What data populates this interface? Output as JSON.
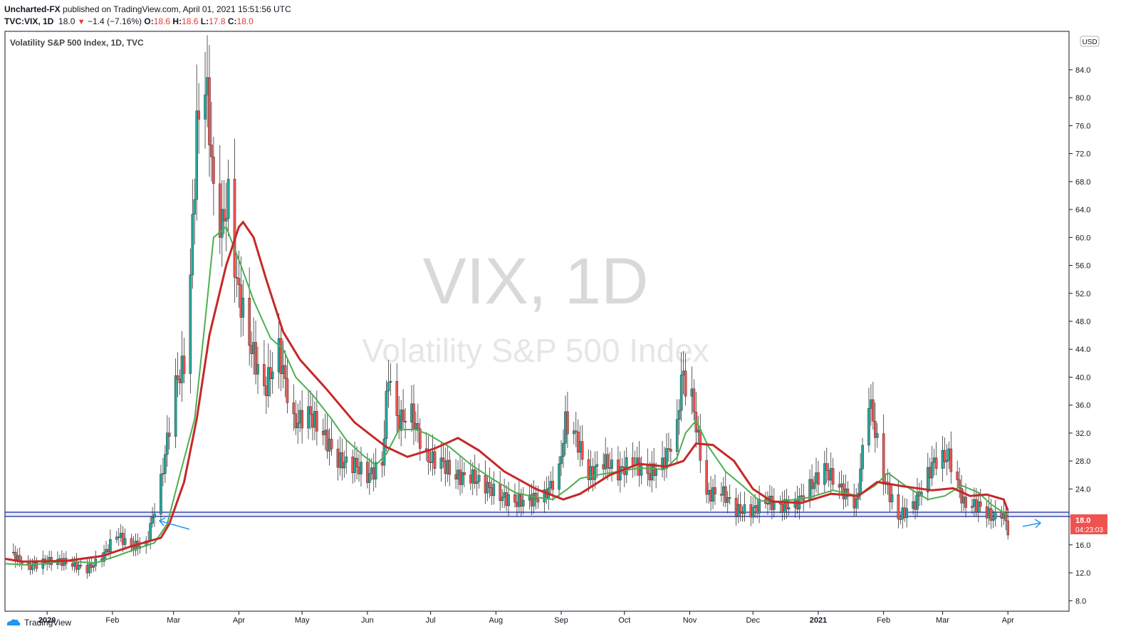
{
  "header": {
    "publisher": "Uncharted-FX",
    "published_text": "published on TradingView.com, April 01, 2021 15:51:56 UTC",
    "symbol": "TVC:VIX, 1D",
    "last": "18.0",
    "change": "−1.4 (−7.16%)",
    "o_label": "O:",
    "o_val": "18.6",
    "h_label": "H:",
    "h_val": "18.6",
    "l_label": "L:",
    "l_val": "17.8",
    "c_label": "C:",
    "c_val": "18.0"
  },
  "legend_title": "Volatility S&P 500 Index, 1D, TVC",
  "watermark": {
    "line1": "VIX, 1D",
    "line2": "Volatility S&P 500 Index"
  },
  "axis": {
    "currency": "USD",
    "price_badge": "18.0",
    "countdown": "04:23:03"
  },
  "footer": {
    "brand": "TradingView"
  },
  "colors": {
    "up": "#26a69a",
    "down": "#ef5350",
    "ma_fast": "#4caf50",
    "ma_slow": "#c62828",
    "support": "#3949ab",
    "arrow": "#2196f3",
    "badge": "#ef5350",
    "text": "#131722"
  },
  "chart_data": {
    "type": "candlestick",
    "title": "Volatility S&P 500 Index, 1D, TVC",
    "x_ticks": [
      "2020",
      "Feb",
      "Mar",
      "Apr",
      "May",
      "Jun",
      "Jul",
      "Aug",
      "Sep",
      "Oct",
      "Nov",
      "Dec",
      "2021",
      "Feb",
      "Mar",
      "Apr"
    ],
    "y_ticks": [
      8.0,
      12.0,
      16.0,
      20.0,
      24.0,
      28.0,
      32.0,
      36.0,
      40.0,
      44.0,
      48.0,
      52.0,
      56.0,
      60.0,
      64.0,
      68.0,
      72.0,
      76.0,
      80.0,
      84.0
    ],
    "ylim": [
      6.5,
      89.5
    ],
    "x_range": [
      "2019-12-12",
      "2021-04-30"
    ],
    "support_level": [
      19.2,
      19.8
    ],
    "grid": false,
    "series": [
      {
        "name": "VIX",
        "type": "candles",
        "note": "approximate daily closes",
        "points": [
          [
            "2019-12-16",
            14.5
          ],
          [
            "2019-12-23",
            12.8
          ],
          [
            "2019-12-30",
            13.5
          ],
          [
            "2020-01-06",
            13.8
          ],
          [
            "2020-01-13",
            13.2
          ],
          [
            "2020-01-20",
            12.5
          ],
          [
            "2020-01-27",
            14.2
          ],
          [
            "2020-02-03",
            17.5
          ],
          [
            "2020-02-10",
            15.8
          ],
          [
            "2020-02-17",
            16.0
          ],
          [
            "2020-02-24",
            25.0
          ],
          [
            "2020-03-02",
            39.0
          ],
          [
            "2020-03-06",
            41.9
          ],
          [
            "2020-03-09",
            54.5
          ],
          [
            "2020-03-12",
            75.5
          ],
          [
            "2020-03-16",
            82.7
          ],
          [
            "2020-03-18",
            76.0
          ],
          [
            "2020-03-20",
            66.0
          ],
          [
            "2020-03-24",
            61.7
          ],
          [
            "2020-03-27",
            65.5
          ],
          [
            "2020-03-31",
            53.5
          ],
          [
            "2020-04-06",
            45.2
          ],
          [
            "2020-04-13",
            38.1
          ],
          [
            "2020-04-20",
            43.8
          ],
          [
            "2020-04-27",
            33.3
          ],
          [
            "2020-05-04",
            34.9
          ],
          [
            "2020-05-11",
            31.9
          ],
          [
            "2020-05-18",
            28.0
          ],
          [
            "2020-05-26",
            27.5
          ],
          [
            "2020-06-01",
            25.8
          ],
          [
            "2020-06-08",
            27.6
          ],
          [
            "2020-06-11",
            40.8
          ],
          [
            "2020-06-15",
            33.7
          ],
          [
            "2020-06-22",
            34.7
          ],
          [
            "2020-06-29",
            28.4
          ],
          [
            "2020-07-06",
            27.9
          ],
          [
            "2020-07-13",
            25.7
          ],
          [
            "2020-07-20",
            25.8
          ],
          [
            "2020-07-27",
            24.5
          ],
          [
            "2020-08-03",
            23.0
          ],
          [
            "2020-08-10",
            22.1
          ],
          [
            "2020-08-17",
            22.5
          ],
          [
            "2020-08-24",
            22.9
          ],
          [
            "2020-08-31",
            26.6
          ],
          [
            "2020-09-03",
            33.6
          ],
          [
            "2020-09-08",
            31.5
          ],
          [
            "2020-09-14",
            25.8
          ],
          [
            "2020-09-21",
            28.0
          ],
          [
            "2020-09-28",
            26.4
          ],
          [
            "2020-10-05",
            28.0
          ],
          [
            "2020-10-12",
            26.0
          ],
          [
            "2020-10-19",
            27.5
          ],
          [
            "2020-10-26",
            32.5
          ],
          [
            "2020-10-28",
            40.3
          ],
          [
            "2020-11-02",
            37.1
          ],
          [
            "2020-11-09",
            23.1
          ],
          [
            "2020-11-16",
            23.7
          ],
          [
            "2020-11-23",
            21.0
          ],
          [
            "2020-11-30",
            20.8
          ],
          [
            "2020-12-07",
            22.3
          ],
          [
            "2020-12-14",
            21.5
          ],
          [
            "2020-12-21",
            21.7
          ],
          [
            "2021-01-04",
            26.9
          ],
          [
            "2021-01-11",
            24.3
          ],
          [
            "2021-01-19",
            21.6
          ],
          [
            "2021-01-25",
            37.2
          ],
          [
            "2021-02-01",
            25.6
          ],
          [
            "2021-02-08",
            19.9
          ],
          [
            "2021-02-16",
            22.0
          ],
          [
            "2021-02-25",
            28.0
          ],
          [
            "2021-03-04",
            28.6
          ],
          [
            "2021-03-11",
            21.9
          ],
          [
            "2021-03-18",
            21.6
          ],
          [
            "2021-03-25",
            19.8
          ],
          [
            "2021-03-29",
            20.7
          ],
          [
            "2021-03-31",
            19.4
          ],
          [
            "2021-04-01",
            18.0
          ]
        ]
      },
      {
        "name": "fast MA",
        "type": "line",
        "points": [
          [
            "2019-12-12",
            13.3
          ],
          [
            "2019-12-24",
            13.1
          ],
          [
            "2020-01-10",
            13.7
          ],
          [
            "2020-01-24",
            13.4
          ],
          [
            "2020-02-03",
            14.4
          ],
          [
            "2020-02-14",
            15.6
          ],
          [
            "2020-02-21",
            16.3
          ],
          [
            "2020-02-27",
            19.0
          ],
          [
            "2020-03-04",
            26.0
          ],
          [
            "2020-03-11",
            34.0
          ],
          [
            "2020-03-16",
            48.0
          ],
          [
            "2020-03-20",
            60.0
          ],
          [
            "2020-03-26",
            61.5
          ],
          [
            "2020-04-02",
            56.0
          ],
          [
            "2020-04-08",
            51.0
          ],
          [
            "2020-04-16",
            45.6
          ],
          [
            "2020-04-22",
            44.0
          ],
          [
            "2020-04-28",
            40.0
          ],
          [
            "2020-05-06",
            37.5
          ],
          [
            "2020-05-15",
            34.0
          ],
          [
            "2020-05-22",
            31.0
          ],
          [
            "2020-05-30",
            28.8
          ],
          [
            "2020-06-05",
            27.4
          ],
          [
            "2020-06-10",
            29.0
          ],
          [
            "2020-06-16",
            32.5
          ],
          [
            "2020-06-24",
            32.5
          ],
          [
            "2020-06-30",
            31.8
          ],
          [
            "2020-07-10",
            30.0
          ],
          [
            "2020-07-20",
            27.5
          ],
          [
            "2020-07-30",
            25.5
          ],
          [
            "2020-08-10",
            23.5
          ],
          [
            "2020-08-20",
            22.8
          ],
          [
            "2020-08-28",
            22.5
          ],
          [
            "2020-09-04",
            24.0
          ],
          [
            "2020-09-10",
            25.5
          ],
          [
            "2020-09-18",
            26.0
          ],
          [
            "2020-09-28",
            26.5
          ],
          [
            "2020-10-08",
            27.0
          ],
          [
            "2020-10-20",
            26.8
          ],
          [
            "2020-10-26",
            28.5
          ],
          [
            "2020-10-30",
            32.0
          ],
          [
            "2020-11-04",
            33.8
          ],
          [
            "2020-11-10",
            30.0
          ],
          [
            "2020-11-18",
            26.5
          ],
          [
            "2020-11-26",
            24.5
          ],
          [
            "2020-12-04",
            22.3
          ],
          [
            "2020-12-14",
            22.2
          ],
          [
            "2020-12-28",
            22.8
          ],
          [
            "2021-01-08",
            23.8
          ],
          [
            "2021-01-20",
            23.0
          ],
          [
            "2021-01-28",
            24.5
          ],
          [
            "2021-02-03",
            26.3
          ],
          [
            "2021-02-12",
            24.3
          ],
          [
            "2021-02-22",
            22.5
          ],
          [
            "2021-03-02",
            23.0
          ],
          [
            "2021-03-10",
            24.5
          ],
          [
            "2021-03-18",
            23.5
          ],
          [
            "2021-03-24",
            21.8
          ],
          [
            "2021-04-01",
            20.2
          ]
        ]
      },
      {
        "name": "slow MA",
        "type": "line",
        "points": [
          [
            "2019-12-12",
            14.0
          ],
          [
            "2019-12-20",
            13.6
          ],
          [
            "2020-01-10",
            13.7
          ],
          [
            "2020-01-27",
            14.4
          ],
          [
            "2020-02-10",
            15.8
          ],
          [
            "2020-02-24",
            17.0
          ],
          [
            "2020-02-28",
            19.0
          ],
          [
            "2020-03-06",
            25.0
          ],
          [
            "2020-03-12",
            34.0
          ],
          [
            "2020-03-18",
            46.0
          ],
          [
            "2020-03-26",
            56.0
          ],
          [
            "2020-04-01",
            61.5
          ],
          [
            "2020-04-03",
            62.2
          ],
          [
            "2020-04-08",
            60.0
          ],
          [
            "2020-04-14",
            54.0
          ],
          [
            "2020-04-22",
            46.5
          ],
          [
            "2020-04-30",
            42.5
          ],
          [
            "2020-05-12",
            38.5
          ],
          [
            "2020-05-26",
            33.5
          ],
          [
            "2020-06-10",
            30.0
          ],
          [
            "2020-06-20",
            28.6
          ],
          [
            "2020-07-03",
            29.8
          ],
          [
            "2020-07-14",
            31.3
          ],
          [
            "2020-07-24",
            29.5
          ],
          [
            "2020-08-05",
            26.5
          ],
          [
            "2020-08-20",
            24.0
          ],
          [
            "2020-09-02",
            22.5
          ],
          [
            "2020-09-10",
            23.3
          ],
          [
            "2020-09-24",
            26.0
          ],
          [
            "2020-10-08",
            27.6
          ],
          [
            "2020-10-21",
            27.2
          ],
          [
            "2020-10-29",
            28.0
          ],
          [
            "2020-11-04",
            30.5
          ],
          [
            "2020-11-12",
            30.3
          ],
          [
            "2020-11-22",
            28.0
          ],
          [
            "2020-12-01",
            24.0
          ],
          [
            "2020-12-10",
            22.2
          ],
          [
            "2020-12-24",
            22.0
          ],
          [
            "2021-01-07",
            23.3
          ],
          [
            "2021-01-20",
            23.0
          ],
          [
            "2021-01-29",
            25.0
          ],
          [
            "2021-02-10",
            24.4
          ],
          [
            "2021-02-24",
            23.8
          ],
          [
            "2021-03-06",
            24.1
          ],
          [
            "2021-03-14",
            23.0
          ],
          [
            "2021-03-22",
            23.2
          ],
          [
            "2021-03-30",
            22.5
          ],
          [
            "2021-04-01",
            20.9
          ]
        ]
      }
    ]
  }
}
